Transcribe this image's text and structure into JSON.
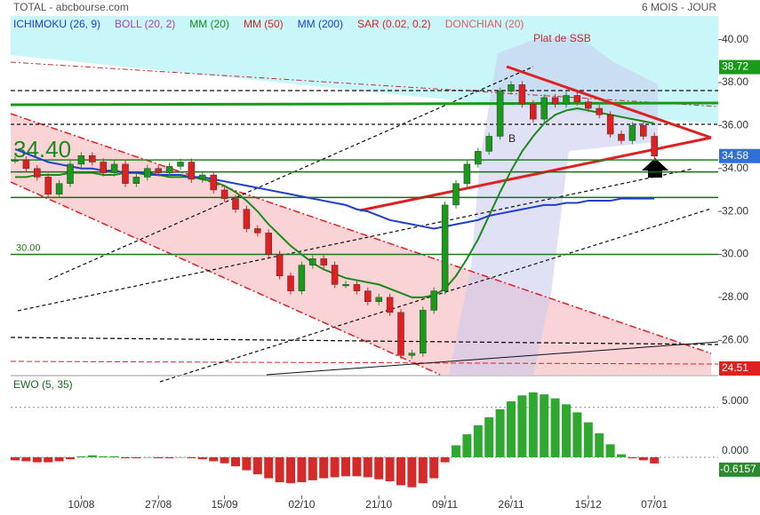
{
  "header": {
    "title": "TOTAL - abcbourse.com",
    "period": "6 MOIS - JOUR"
  },
  "indicators": [
    {
      "name": "ICHIMOKU (26, 9)",
      "color": "#1f3fd0"
    },
    {
      "name": "BOLL (20, 2)",
      "color": "#b040c0"
    },
    {
      "name": "MM (20)",
      "color": "#1a8a1a"
    },
    {
      "name": "MM (50)",
      "color": "#e02020"
    },
    {
      "name": "MM (200)",
      "color": "#1f3fd0"
    },
    {
      "name": "SAR (0.02, 0.2)",
      "color": "#e02020"
    },
    {
      "name": "DONCHIAN (20)",
      "color": "#e06060"
    }
  ],
  "annotations": {
    "ssb": "Plat de SSB",
    "b": "B"
  },
  "chart_data": [
    {
      "type": "candlestick",
      "categories": [
        null,
        null,
        null,
        null,
        null,
        null,
        "10/08",
        null,
        null,
        null,
        null,
        null,
        null,
        "27/08",
        null,
        null,
        null,
        null,
        null,
        "15/09",
        null,
        null,
        null,
        null,
        null,
        null,
        "02/10",
        null,
        null,
        null,
        null,
        null,
        null,
        "21/10",
        null,
        null,
        null,
        null,
        null,
        "09/11",
        null,
        null,
        null,
        null,
        null,
        "26/11",
        null,
        null,
        null,
        null,
        null,
        null,
        "15/12",
        null,
        null,
        null,
        null,
        null,
        "07/01"
      ],
      "close": [
        34.4,
        34.0,
        33.6,
        32.8,
        33.3,
        34.2,
        34.6,
        34.3,
        33.8,
        34.2,
        33.3,
        33.6,
        34.0,
        33.8,
        34.1,
        34.3,
        33.5,
        33.7,
        33.0,
        32.6,
        32.1,
        31.2,
        31.0,
        30.0,
        29.0,
        28.3,
        29.5,
        29.8,
        29.5,
        28.6,
        28.6,
        28.3,
        27.8,
        28.0,
        27.3,
        25.3,
        25.4,
        27.4,
        28.3,
        32.3,
        33.3,
        34.2,
        34.8,
        35.5,
        37.6,
        37.9,
        37.0,
        36.3,
        37.3,
        37.0,
        37.4,
        37.1,
        36.8,
        36.5,
        35.6,
        35.3,
        36.0,
        35.5,
        34.58
      ],
      "up_color": "#1a9a1a",
      "down_color": "#e02020",
      "series": [
        {
          "name": "MM (20)",
          "color": "#1a8a1a",
          "values": [
            33.6,
            33.6,
            33.7,
            33.7,
            33.7,
            33.8,
            33.8,
            33.8,
            33.7,
            33.7,
            33.8,
            33.8,
            33.7,
            33.7,
            33.6,
            33.6,
            33.6,
            33.5,
            33.4,
            33.2,
            32.9,
            32.5,
            32.0,
            31.4,
            30.9,
            30.4,
            30.0,
            29.6,
            29.3,
            29.1,
            28.9,
            28.8,
            28.7,
            28.6,
            28.4,
            28.2,
            28.0,
            28.0,
            28.1,
            28.4,
            29.0,
            29.8,
            30.7,
            31.8,
            32.9,
            33.9,
            34.8,
            35.5,
            36.1,
            36.5,
            36.7,
            36.8,
            36.7,
            36.6,
            36.5,
            36.4,
            36.3,
            36.2,
            36.1
          ]
        },
        {
          "name": "MM (200)",
          "color": "#1f3fd0",
          "values": [
            34.9,
            34.7,
            34.5,
            34.3,
            34.2,
            34.1,
            34.0,
            34.0,
            33.9,
            33.9,
            33.8,
            33.8,
            33.8,
            33.7,
            33.7,
            33.7,
            33.6,
            33.6,
            33.5,
            33.4,
            33.3,
            33.2,
            33.1,
            33.0,
            32.9,
            32.8,
            32.7,
            32.6,
            32.5,
            32.4,
            32.3,
            32.1,
            32.0,
            31.8,
            31.6,
            31.5,
            31.4,
            31.3,
            31.2,
            31.3,
            31.4,
            31.5,
            31.6,
            31.8,
            31.9,
            32.0,
            32.1,
            32.2,
            32.3,
            32.3,
            32.4,
            32.4,
            32.5,
            32.5,
            32.5,
            32.6,
            32.6,
            32.6,
            32.6
          ]
        }
      ],
      "levels": [
        {
          "value": 34.4,
          "label": "34.40",
          "color": "#1a8a1a"
        },
        {
          "value": 33.84,
          "color": "#1a6a1a"
        },
        {
          "value": 32.65,
          "color": "#1a6a1a"
        },
        {
          "value": 30,
          "label": "30.00",
          "color": "#1a7a1a"
        }
      ],
      "price_boxes": [
        {
          "value": 38.72,
          "color": "#1a9a1a"
        },
        {
          "value": 34.58,
          "color": "#2f6fd6"
        },
        {
          "value": 24.51,
          "color": "#e02020"
        }
      ],
      "ylim": [
        24.4,
        41.1
      ],
      "yticks": [
        {
          "value": 26,
          "label": "26.00"
        },
        {
          "value": 28,
          "label": "28.00"
        },
        {
          "value": 30,
          "label": "30.00"
        },
        {
          "value": 32,
          "label": "32.00"
        },
        {
          "value": 34,
          "label": "34.00"
        },
        {
          "value": 36,
          "label": "36.00"
        },
        {
          "value": 38,
          "label": "38.00"
        },
        {
          "value": 40,
          "label": "40.00"
        }
      ]
    },
    {
      "type": "histogram",
      "title": "EWO (5, 35)",
      "pos_color": "#2ea82e",
      "neg_color": "#d42a2a",
      "values": [
        -0.3,
        -0.4,
        -0.5,
        -0.5,
        -0.4,
        -0.2,
        0.1,
        0.2,
        0.1,
        0.1,
        -0.1,
        -0.1,
        0.0,
        -0.1,
        -0.1,
        0.0,
        -0.1,
        -0.2,
        -0.4,
        -0.6,
        -0.9,
        -1.3,
        -1.7,
        -2.1,
        -2.5,
        -2.6,
        -2.5,
        -2.3,
        -2.1,
        -2.0,
        -1.9,
        -1.9,
        -2.0,
        -2.2,
        -2.4,
        -2.8,
        -3.0,
        -2.6,
        -2.1,
        -0.5,
        1.2,
        2.3,
        3.2,
        4.0,
        4.8,
        5.6,
        6.2,
        6.5,
        6.3,
        5.9,
        5.3,
        4.5,
        3.5,
        2.4,
        1.3,
        0.3,
        -0.1,
        -0.3,
        -0.6157
      ],
      "ylim": [
        -4,
        8
      ],
      "yticks": [
        {
          "value": 0,
          "label": "0.000"
        },
        {
          "value": 5,
          "label": "5.000"
        }
      ]
    }
  ]
}
